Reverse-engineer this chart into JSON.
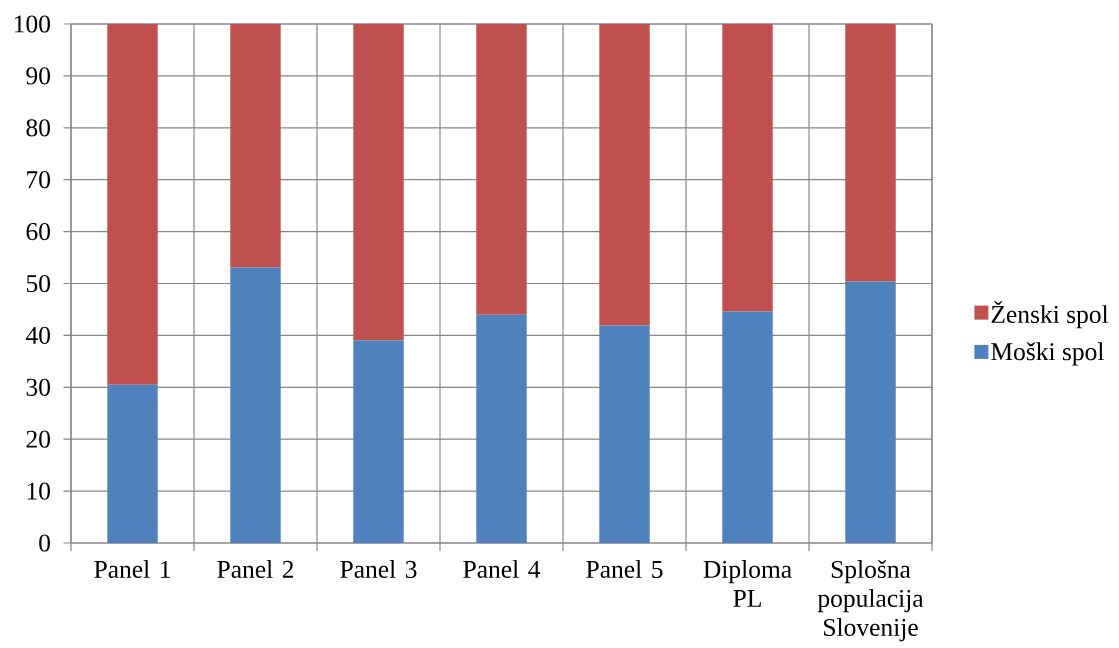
{
  "chart_data": {
    "type": "bar",
    "stacked": true,
    "categories": [
      "Panel 1",
      "Panel 2",
      "Panel 3",
      "Panel 4",
      "Panel 5",
      "Diploma PL",
      "Splošna populacija Slovenije"
    ],
    "series": [
      {
        "name": "Moški spol",
        "color": "#4f81bd",
        "values": [
          30.5,
          53.1,
          39.0,
          44.0,
          41.9,
          44.6,
          50.4
        ]
      },
      {
        "name": "Ženski spol",
        "color": "#c0504d",
        "values": [
          69.5,
          46.9,
          61.0,
          56.0,
          58.1,
          55.4,
          49.6
        ]
      }
    ],
    "ylim": [
      0,
      100
    ],
    "yticks": [
      0,
      10,
      20,
      30,
      40,
      50,
      60,
      70,
      80,
      90,
      100
    ],
    "grid": true,
    "legend": "right"
  }
}
